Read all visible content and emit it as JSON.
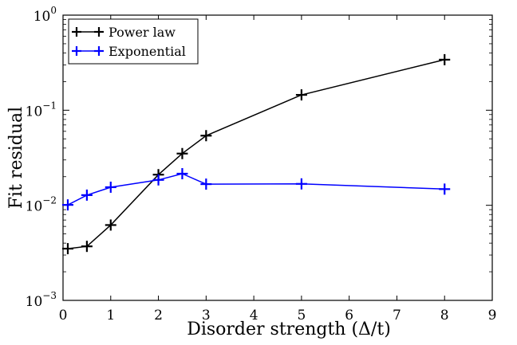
{
  "chart_data": {
    "type": "line",
    "xlabel": "Disorder strength (Δ/t)",
    "ylabel": "Fit residual",
    "xlim": [
      0,
      9
    ],
    "ylim": [
      0.001,
      1
    ],
    "yscale": "log",
    "grid": false,
    "legend_position": "top-left",
    "x_ticks": [
      "0",
      "1",
      "2",
      "3",
      "4",
      "5",
      "6",
      "7",
      "8",
      "9"
    ],
    "y_ticks": [
      {
        "value": 0.001,
        "base": "10",
        "exp": "−3"
      },
      {
        "value": 0.01,
        "base": "10",
        "exp": "−2"
      },
      {
        "value": 0.1,
        "base": "10",
        "exp": "−1"
      },
      {
        "value": 1,
        "base": "10",
        "exp": "0"
      }
    ],
    "series": [
      {
        "name": "Power law",
        "color": "#000000",
        "marker": "plus",
        "x": [
          0.1,
          0.5,
          1,
          2,
          2.5,
          3,
          5,
          8
        ],
        "y": [
          0.0035,
          0.0037,
          0.0062,
          0.021,
          0.035,
          0.054,
          0.145,
          0.34
        ]
      },
      {
        "name": "Exponential",
        "color": "#0000ff",
        "marker": "plus",
        "x": [
          0.1,
          0.5,
          1,
          2,
          2.5,
          3,
          5,
          8
        ],
        "y": [
          0.0101,
          0.0128,
          0.0155,
          0.0185,
          0.0215,
          0.0167,
          0.0168,
          0.0148
        ]
      }
    ]
  }
}
